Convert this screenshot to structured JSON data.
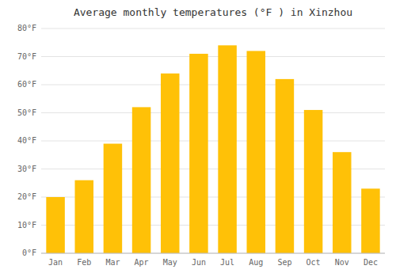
{
  "chart_data": {
    "type": "bar",
    "title": "Average monthly temperatures (°F ) in Xinzhou",
    "categories": [
      "Jan",
      "Feb",
      "Mar",
      "Apr",
      "May",
      "Jun",
      "Jul",
      "Aug",
      "Sep",
      "Oct",
      "Nov",
      "Dec"
    ],
    "values": [
      20,
      26,
      39,
      52,
      64,
      71,
      74,
      72,
      62,
      51,
      36,
      23
    ],
    "color": "#FFC107",
    "ylim": [
      0,
      80
    ],
    "yticks": [
      {
        "value": 0,
        "label": "0°F"
      },
      {
        "value": 10,
        "label": "10°F"
      },
      {
        "value": 20,
        "label": "20°F"
      },
      {
        "value": 30,
        "label": "30°F"
      },
      {
        "value": 40,
        "label": "40°F"
      },
      {
        "value": 50,
        "label": "50°F"
      },
      {
        "value": 60,
        "label": "60°F"
      },
      {
        "value": 70,
        "label": "70°F"
      },
      {
        "value": 80,
        "label": "80°F"
      }
    ],
    "grid": true
  }
}
